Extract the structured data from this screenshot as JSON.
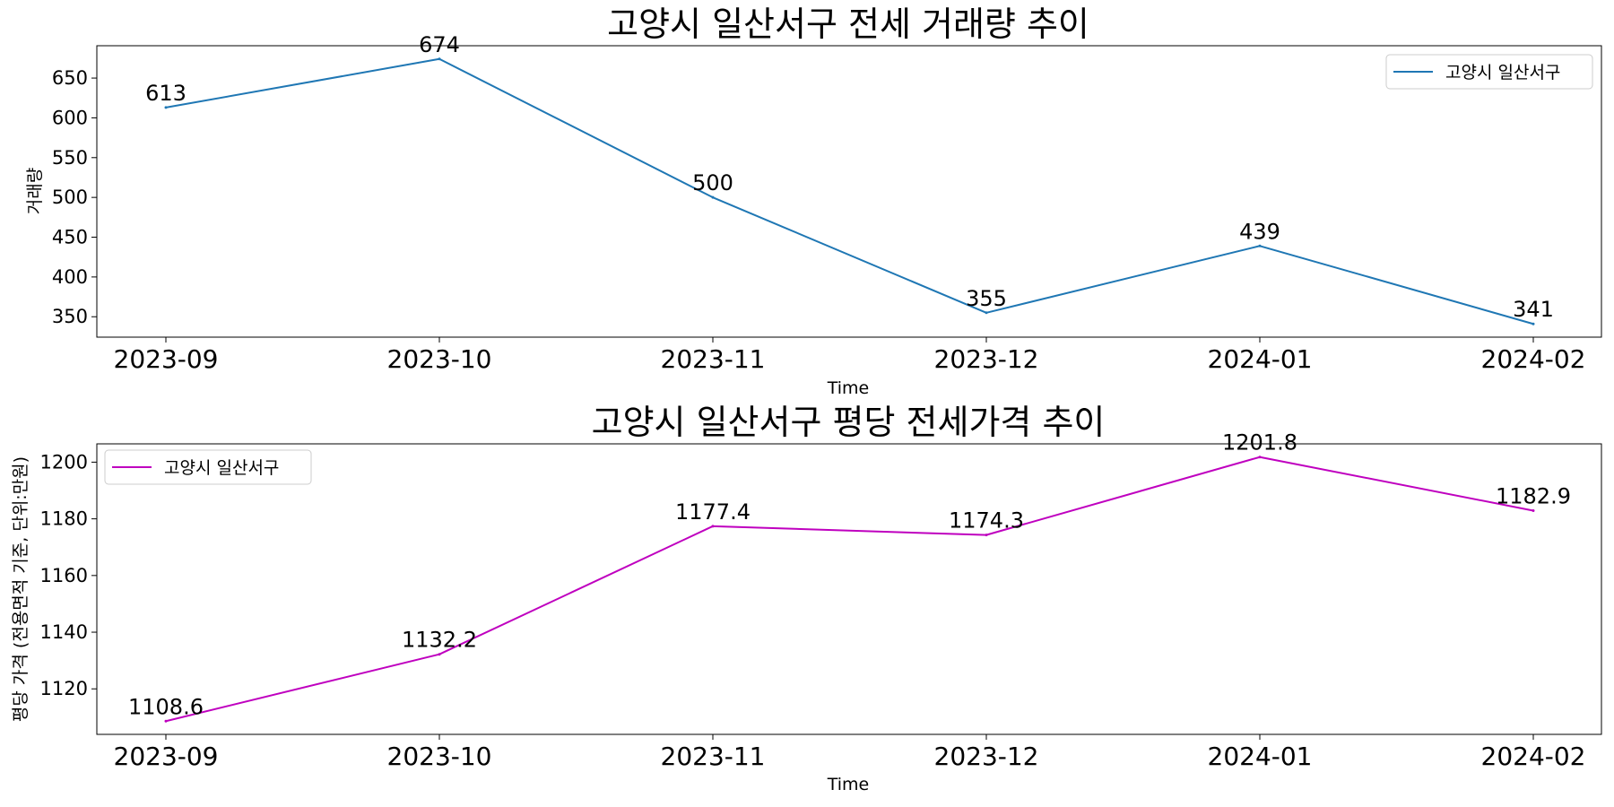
{
  "chart_data": [
    {
      "type": "line",
      "title": "고양시 일산서구 전세 거래량 추이",
      "xlabel": "Time",
      "ylabel": "거래량",
      "categories": [
        "2023-09",
        "2023-10",
        "2023-11",
        "2023-12",
        "2024-01",
        "2024-02"
      ],
      "series": [
        {
          "name": "고양시 일산서구",
          "values": [
            613,
            674,
            500,
            355,
            439,
            341
          ],
          "color": "#1f77b4"
        }
      ],
      "data_labels": [
        "613",
        "674",
        "500",
        "355",
        "439",
        "341"
      ],
      "yticks": [
        350,
        400,
        450,
        500,
        550,
        600,
        650
      ],
      "ylim": [
        324.35,
        690.65
      ],
      "grid": false,
      "legend_position": "top-right"
    },
    {
      "type": "line",
      "title": "고양시 일산서구 평당 전세가격 추이",
      "xlabel": "Time",
      "ylabel": "평당 가격 (전용면적 기준, 단위:만원)",
      "categories": [
        "2023-09",
        "2023-10",
        "2023-11",
        "2023-12",
        "2024-01",
        "2024-02"
      ],
      "series": [
        {
          "name": "고양시 일산서구",
          "values": [
            1108.6,
            1132.2,
            1177.4,
            1174.3,
            1201.8,
            1182.9
          ],
          "color": "#bf00bf"
        }
      ],
      "data_labels": [
        "1108.6",
        "1132.2",
        "1177.4",
        "1174.3",
        "1201.8",
        "1182.9"
      ],
      "yticks": [
        1120,
        1140,
        1160,
        1180,
        1200
      ],
      "ylim": [
        1103.94,
        1206.46
      ],
      "grid": false,
      "legend_position": "top-left"
    }
  ]
}
